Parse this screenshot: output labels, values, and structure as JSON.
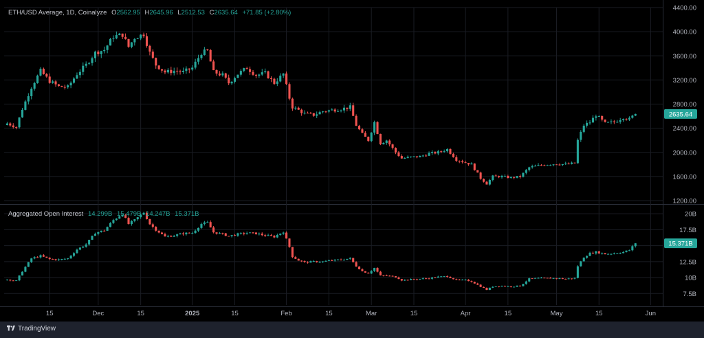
{
  "legend1": {
    "title": "ETH/USD Average, 1D, Coinalyze",
    "o_label": "O",
    "o_value": "2562.95",
    "h_label": "H",
    "h_value": "2645.96",
    "l_label": "L",
    "l_value": "2512.53",
    "c_label": "C",
    "c_value": "2635.64",
    "change": "+71.85 (+2.80%)"
  },
  "legend2": {
    "title": "Aggregated Open Interest",
    "v1": "14.299B",
    "v2": "15.479B",
    "v3": "14.247B",
    "v4": "15.371B"
  },
  "brand": {
    "name": "TradingView",
    "logo": "tradingview-logo-icon"
  },
  "colors": {
    "up": "#26a69a",
    "down": "#ef5350",
    "background": "#000000",
    "grid": "#1a1d24"
  },
  "chart_data": [
    {
      "type": "candlestick",
      "name": "ETH/USD Average",
      "ylim": [
        1200,
        4400
      ],
      "yticks": [
        1200,
        1600,
        2000,
        2400,
        2800,
        3200,
        3600,
        4000,
        4400
      ],
      "ytick_labels": [
        "1200.00",
        "1600.00",
        "2000.00",
        "2400.00",
        "2800.00",
        "3200.00",
        "3600.00",
        "4000.00",
        "4400.00"
      ],
      "last_price": 2635.64,
      "last_price_label": "2635.64",
      "x_start": "2024-10-31",
      "x_end": "2025-06-05",
      "x_ticks": [
        {
          "date": "2024-11-15",
          "label": "15"
        },
        {
          "date": "2024-12-01",
          "label": "Dec"
        },
        {
          "date": "2024-12-15",
          "label": "15"
        },
        {
          "date": "2025-01-01",
          "label": "2025"
        },
        {
          "date": "2025-01-15",
          "label": "15"
        },
        {
          "date": "2025-02-01",
          "label": "Feb"
        },
        {
          "date": "2025-02-15",
          "label": "15"
        },
        {
          "date": "2025-03-01",
          "label": "Mar"
        },
        {
          "date": "2025-03-15",
          "label": "15"
        },
        {
          "date": "2025-04-01",
          "label": "Apr"
        },
        {
          "date": "2025-04-15",
          "label": "15"
        },
        {
          "date": "2025-05-01",
          "label": "May"
        },
        {
          "date": "2025-05-15",
          "label": "15"
        },
        {
          "date": "2025-06-01",
          "label": "Jun"
        }
      ],
      "close_path": [
        [
          "2024-11-01",
          2480
        ],
        [
          "2024-11-04",
          2420
        ],
        [
          "2024-11-06",
          2720
        ],
        [
          "2024-11-09",
          3080
        ],
        [
          "2024-11-12",
          3350
        ],
        [
          "2024-11-15",
          3180
        ],
        [
          "2024-11-18",
          3090
        ],
        [
          "2024-11-21",
          3080
        ],
        [
          "2024-11-24",
          3300
        ],
        [
          "2024-11-27",
          3450
        ],
        [
          "2024-11-30",
          3650
        ],
        [
          "2024-12-03",
          3700
        ],
        [
          "2024-12-06",
          3920
        ],
        [
          "2024-12-09",
          3950
        ],
        [
          "2024-12-11",
          3750
        ],
        [
          "2024-12-13",
          3900
        ],
        [
          "2024-12-16",
          3960
        ],
        [
          "2024-12-18",
          3650
        ],
        [
          "2024-12-20",
          3450
        ],
        [
          "2024-12-23",
          3330
        ],
        [
          "2024-12-26",
          3350
        ],
        [
          "2024-12-29",
          3330
        ],
        [
          "2025-01-01",
          3400
        ],
        [
          "2025-01-04",
          3650
        ],
        [
          "2025-01-06",
          3680
        ],
        [
          "2025-01-08",
          3330
        ],
        [
          "2025-01-11",
          3280
        ],
        [
          "2025-01-13",
          3150
        ],
        [
          "2025-01-16",
          3300
        ],
        [
          "2025-01-19",
          3400
        ],
        [
          "2025-01-22",
          3280
        ],
        [
          "2025-01-25",
          3310
        ],
        [
          "2025-01-28",
          3150
        ],
        [
          "2025-01-31",
          3300
        ],
        [
          "2025-02-02",
          2900
        ],
        [
          "2025-02-03",
          2750
        ],
        [
          "2025-02-05",
          2700
        ],
        [
          "2025-02-07",
          2640
        ],
        [
          "2025-02-10",
          2620
        ],
        [
          "2025-02-13",
          2680
        ],
        [
          "2025-02-16",
          2700
        ],
        [
          "2025-02-19",
          2720
        ],
        [
          "2025-02-22",
          2750
        ],
        [
          "2025-02-24",
          2450
        ],
        [
          "2025-02-26",
          2300
        ],
        [
          "2025-02-28",
          2200
        ],
        [
          "2025-03-02",
          2500
        ],
        [
          "2025-03-04",
          2150
        ],
        [
          "2025-03-06",
          2200
        ],
        [
          "2025-03-09",
          2000
        ],
        [
          "2025-03-11",
          1900
        ],
        [
          "2025-03-14",
          1920
        ],
        [
          "2025-03-17",
          1930
        ],
        [
          "2025-03-20",
          1980
        ],
        [
          "2025-03-23",
          2000
        ],
        [
          "2025-03-26",
          2050
        ],
        [
          "2025-03-29",
          1880
        ],
        [
          "2025-04-01",
          1830
        ],
        [
          "2025-04-03",
          1800
        ],
        [
          "2025-04-06",
          1570
        ],
        [
          "2025-04-08",
          1480
        ],
        [
          "2025-04-10",
          1600
        ],
        [
          "2025-04-13",
          1600
        ],
        [
          "2025-04-16",
          1580
        ],
        [
          "2025-04-19",
          1600
        ],
        [
          "2025-04-22",
          1750
        ],
        [
          "2025-04-25",
          1780
        ],
        [
          "2025-04-28",
          1800
        ],
        [
          "2025-05-01",
          1810
        ],
        [
          "2025-05-04",
          1800
        ],
        [
          "2025-05-07",
          1820
        ],
        [
          "2025-05-08",
          2200
        ],
        [
          "2025-05-10",
          2450
        ],
        [
          "2025-05-12",
          2500
        ],
        [
          "2025-05-14",
          2620
        ],
        [
          "2025-05-17",
          2480
        ],
        [
          "2025-05-20",
          2500
        ],
        [
          "2025-05-23",
          2580
        ],
        [
          "2025-05-25",
          2550
        ],
        [
          "2025-05-27",
          2636
        ]
      ],
      "up_color": "#26a69a",
      "down_color": "#ef5350",
      "grid": true
    },
    {
      "type": "candlestick",
      "name": "Aggregated Open Interest",
      "ylim": [
        5.7,
        21.2
      ],
      "yticks": [
        7.5,
        10,
        12.5,
        15,
        17.5,
        20
      ],
      "ytick_labels": [
        "7.5B",
        "10B",
        "12.5B",
        "15B",
        "17.5B",
        "20B"
      ],
      "last_value": 15.371,
      "last_value_label": "15.371B",
      "close_path": [
        [
          "2024-11-01",
          9.7
        ],
        [
          "2024-11-04",
          9.5
        ],
        [
          "2024-11-06",
          11.0
        ],
        [
          "2024-11-09",
          13.0
        ],
        [
          "2024-11-12",
          13.4
        ],
        [
          "2024-11-15",
          12.9
        ],
        [
          "2024-11-18",
          12.8
        ],
        [
          "2024-11-21",
          13.0
        ],
        [
          "2024-11-24",
          14.4
        ],
        [
          "2024-11-27",
          15.2
        ],
        [
          "2024-11-30",
          17.0
        ],
        [
          "2024-12-03",
          17.4
        ],
        [
          "2024-12-06",
          19.0
        ],
        [
          "2024-12-09",
          20.0
        ],
        [
          "2024-12-11",
          18.4
        ],
        [
          "2024-12-13",
          19.0
        ],
        [
          "2024-12-16",
          20.2
        ],
        [
          "2024-12-18",
          18.4
        ],
        [
          "2024-12-20",
          17.5
        ],
        [
          "2024-12-23",
          16.4
        ],
        [
          "2024-12-26",
          16.6
        ],
        [
          "2024-12-29",
          16.9
        ],
        [
          "2025-01-01",
          17.0
        ],
        [
          "2025-01-04",
          18.4
        ],
        [
          "2025-01-06",
          18.6
        ],
        [
          "2025-01-08",
          17.1
        ],
        [
          "2025-01-11",
          16.8
        ],
        [
          "2025-01-13",
          16.5
        ],
        [
          "2025-01-16",
          16.8
        ],
        [
          "2025-01-19",
          17.0
        ],
        [
          "2025-01-22",
          16.9
        ],
        [
          "2025-01-25",
          16.6
        ],
        [
          "2025-01-28",
          16.4
        ],
        [
          "2025-01-31",
          17.2
        ],
        [
          "2025-02-02",
          14.8
        ],
        [
          "2025-02-03",
          13.3
        ],
        [
          "2025-02-05",
          12.7
        ],
        [
          "2025-02-07",
          12.4
        ],
        [
          "2025-02-10",
          12.5
        ],
        [
          "2025-02-13",
          12.5
        ],
        [
          "2025-02-16",
          12.7
        ],
        [
          "2025-02-19",
          12.8
        ],
        [
          "2025-02-22",
          13.0
        ],
        [
          "2025-02-24",
          11.8
        ],
        [
          "2025-02-26",
          11.0
        ],
        [
          "2025-02-28",
          10.7
        ],
        [
          "2025-03-02",
          11.5
        ],
        [
          "2025-03-04",
          10.3
        ],
        [
          "2025-03-06",
          10.3
        ],
        [
          "2025-03-09",
          10.1
        ],
        [
          "2025-03-11",
          9.6
        ],
        [
          "2025-03-14",
          9.7
        ],
        [
          "2025-03-17",
          9.8
        ],
        [
          "2025-03-20",
          9.9
        ],
        [
          "2025-03-23",
          10.1
        ],
        [
          "2025-03-26",
          10.2
        ],
        [
          "2025-03-29",
          9.6
        ],
        [
          "2025-04-01",
          9.6
        ],
        [
          "2025-04-03",
          9.4
        ],
        [
          "2025-04-06",
          8.6
        ],
        [
          "2025-04-08",
          8.1
        ],
        [
          "2025-04-10",
          8.6
        ],
        [
          "2025-04-13",
          8.7
        ],
        [
          "2025-04-16",
          8.6
        ],
        [
          "2025-04-19",
          8.7
        ],
        [
          "2025-04-22",
          9.8
        ],
        [
          "2025-04-25",
          9.9
        ],
        [
          "2025-04-28",
          9.9
        ],
        [
          "2025-05-01",
          9.9
        ],
        [
          "2025-05-04",
          9.8
        ],
        [
          "2025-05-07",
          9.9
        ],
        [
          "2025-05-08",
          11.8
        ],
        [
          "2025-05-10",
          13.2
        ],
        [
          "2025-05-12",
          13.8
        ],
        [
          "2025-05-14",
          14.0
        ],
        [
          "2025-05-17",
          13.7
        ],
        [
          "2025-05-20",
          13.8
        ],
        [
          "2025-05-23",
          14.0
        ],
        [
          "2025-05-25",
          14.3
        ],
        [
          "2025-05-27",
          15.37
        ]
      ],
      "up_color": "#26a69a",
      "down_color": "#ef5350",
      "grid": true
    }
  ]
}
